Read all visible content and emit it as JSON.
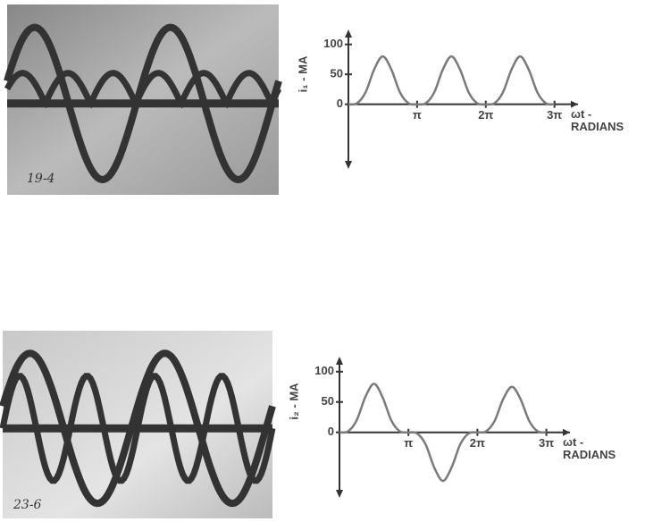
{
  "chart_data": [
    {
      "type": "line",
      "y_label": "i₁ - MA",
      "x_label": [
        "ωt -",
        "RADIANS"
      ],
      "x": [
        0,
        0.3927,
        0.7854,
        1.1781,
        1.5708,
        1.9635,
        2.3562,
        2.7489,
        3.1416,
        3.5343,
        3.927,
        4.3197,
        4.7124,
        5.1051,
        5.4978,
        5.8905,
        6.2832,
        6.6759,
        7.0686,
        7.4613,
        7.854,
        8.2467,
        8.6394,
        9.0321,
        9.4248
      ],
      "series": [
        {
          "color": "#7a7a7a",
          "values": [
            0,
            1.7,
            20,
            58,
            80,
            58,
            20,
            1.7,
            0,
            1.7,
            20,
            58,
            80,
            58,
            20,
            1.7,
            0,
            1.7,
            20,
            58,
            80,
            58,
            20,
            1.7,
            0
          ]
        }
      ],
      "xlim": [
        0,
        10.5
      ],
      "ylim": [
        -105,
        110
      ],
      "xticks": [
        {
          "value": 3.1416,
          "label": "π"
        },
        {
          "value": 6.2832,
          "label": "2π"
        },
        {
          "value": 9.4248,
          "label": "3π"
        }
      ],
      "yticks": [
        0,
        50,
        100
      ]
    },
    {
      "type": "line",
      "y_label": "i₂ - MA",
      "x_label": [
        "ωt -",
        "RADIANS"
      ],
      "x": [
        0,
        0.3927,
        0.7854,
        1.1781,
        1.5708,
        1.9635,
        2.3562,
        2.7489,
        3.1416,
        3.5343,
        3.927,
        4.3197,
        4.7124,
        5.1051,
        5.4978,
        5.8905,
        6.2832,
        6.6759,
        7.0686,
        7.4613,
        7.854,
        8.2467,
        8.6394,
        9.0321,
        9.4248
      ],
      "series": [
        {
          "color": "#7a7a7a",
          "values": [
            0,
            1.7,
            20,
            58,
            80,
            58,
            20,
            1.7,
            0,
            -1.7,
            -20,
            -58,
            -80,
            -58,
            -20,
            -1.7,
            0,
            1.6,
            19,
            55,
            75,
            55,
            19,
            1.6,
            0
          ]
        }
      ],
      "xlim": [
        0,
        10.5
      ],
      "ylim": [
        -105,
        110
      ],
      "xticks": [
        {
          "value": 3.1416,
          "label": "π"
        },
        {
          "value": 6.2832,
          "label": "2π"
        },
        {
          "value": 9.4248,
          "label": "3π"
        }
      ],
      "yticks": [
        0,
        50,
        100
      ]
    }
  ],
  "photos": [
    {
      "label": "19-4"
    },
    {
      "label": "23-6"
    }
  ]
}
